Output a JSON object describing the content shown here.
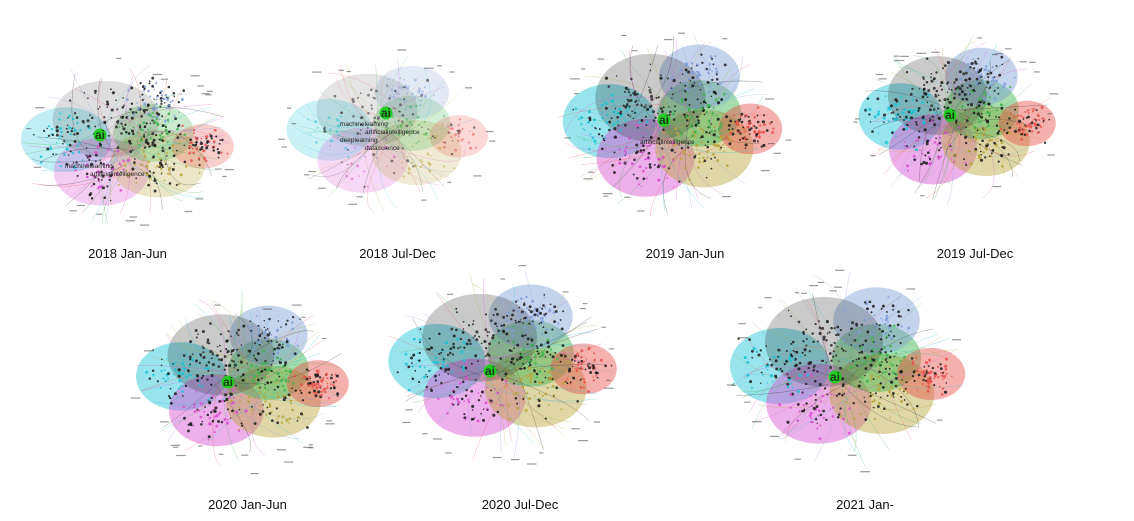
{
  "figure": {
    "colors": {
      "cyan": "#19c3d6",
      "magenta": "#d94fd0",
      "olive": "#b9a63a",
      "green": "#3cb44b",
      "blue": "#7f9fd8",
      "red": "#e8524b",
      "dark": "#2a2a2a",
      "hub": "#22cc22"
    },
    "panels": [
      {
        "caption": "2018 Jan-Jun",
        "hub_label": "ai",
        "labels": [
          "machinelearning",
          "artificialintelligence"
        ],
        "style": "early"
      },
      {
        "caption": "2018 Jul-Dec",
        "hub_label": "ai",
        "labels": [
          "machinelearning",
          "artificialintelligence",
          "deeplearning",
          "datascience"
        ],
        "style": "faded"
      },
      {
        "caption": "2019 Jan-Jun",
        "hub_label": "ai",
        "labels": [
          "artificialintelligence"
        ],
        "style": "dense"
      },
      {
        "caption": "2019 Jul-Dec",
        "hub_label": "ai",
        "labels": [],
        "style": "dense"
      },
      {
        "caption": "2020 Jan-Jun",
        "hub_label": "ai",
        "labels": [],
        "style": "dense"
      },
      {
        "caption": "2020 Jul-Dec",
        "hub_label": "ai",
        "labels": [],
        "style": "dense"
      },
      {
        "caption": "2021 Jan-",
        "hub_label": "ai",
        "labels": [],
        "style": "dense"
      }
    ]
  }
}
